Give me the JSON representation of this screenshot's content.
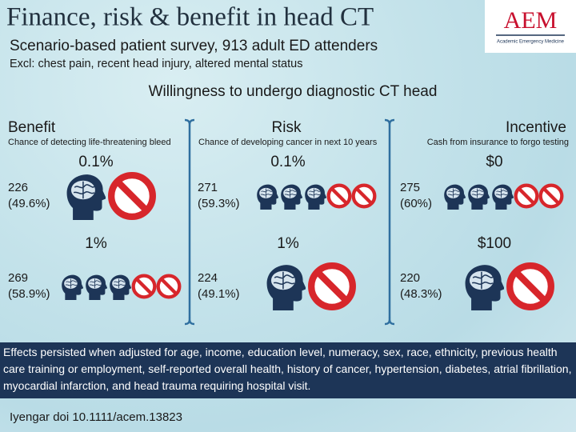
{
  "header": {
    "title": "Finance, risk & benefit in head CT",
    "subtitle": "Scenario-based patient survey, 913 adult ED attenders",
    "exclusions": "Excl: chest pain, recent head injury, altered mental status",
    "logo": {
      "acronym": "AEM",
      "name": "Academic Emergency Medicine"
    }
  },
  "heading": "Willingness to undergo diagnostic CT head",
  "panels": [
    {
      "title": "Benefit",
      "description": "Chance of detecting life-threatening bleed",
      "scenarios": [
        {
          "level": "0.1%",
          "count": "226",
          "percent": "(49.6%)"
        },
        {
          "level": "1%",
          "count": "269",
          "percent": "(58.9%)"
        }
      ]
    },
    {
      "title": "Risk",
      "description": "Chance of developing cancer in next 10 years",
      "scenarios": [
        {
          "level": "0.1%",
          "count": "271",
          "percent": "(59.3%)"
        },
        {
          "level": "1%",
          "count": "224",
          "percent": "(49.1%)"
        }
      ]
    },
    {
      "title": "Incentive",
      "description": "Cash from insurance to forgo testing",
      "scenarios": [
        {
          "level": "$0",
          "count": "275",
          "percent": "(60%)"
        },
        {
          "level": "$100",
          "count": "220",
          "percent": "(48.3%)"
        }
      ]
    }
  ],
  "note": "Effects persisted when adjusted for age, income, education level, numeracy, sex, race, ethnicity, previous health care training or employment, self-reported overall health, history of cancer, hypertension, diabetes, atrial fibrillation, myocardial infarction, and head trauma requiring hospital visit.",
  "citation": "Iyengar doi 10.1111/acem.13823"
}
